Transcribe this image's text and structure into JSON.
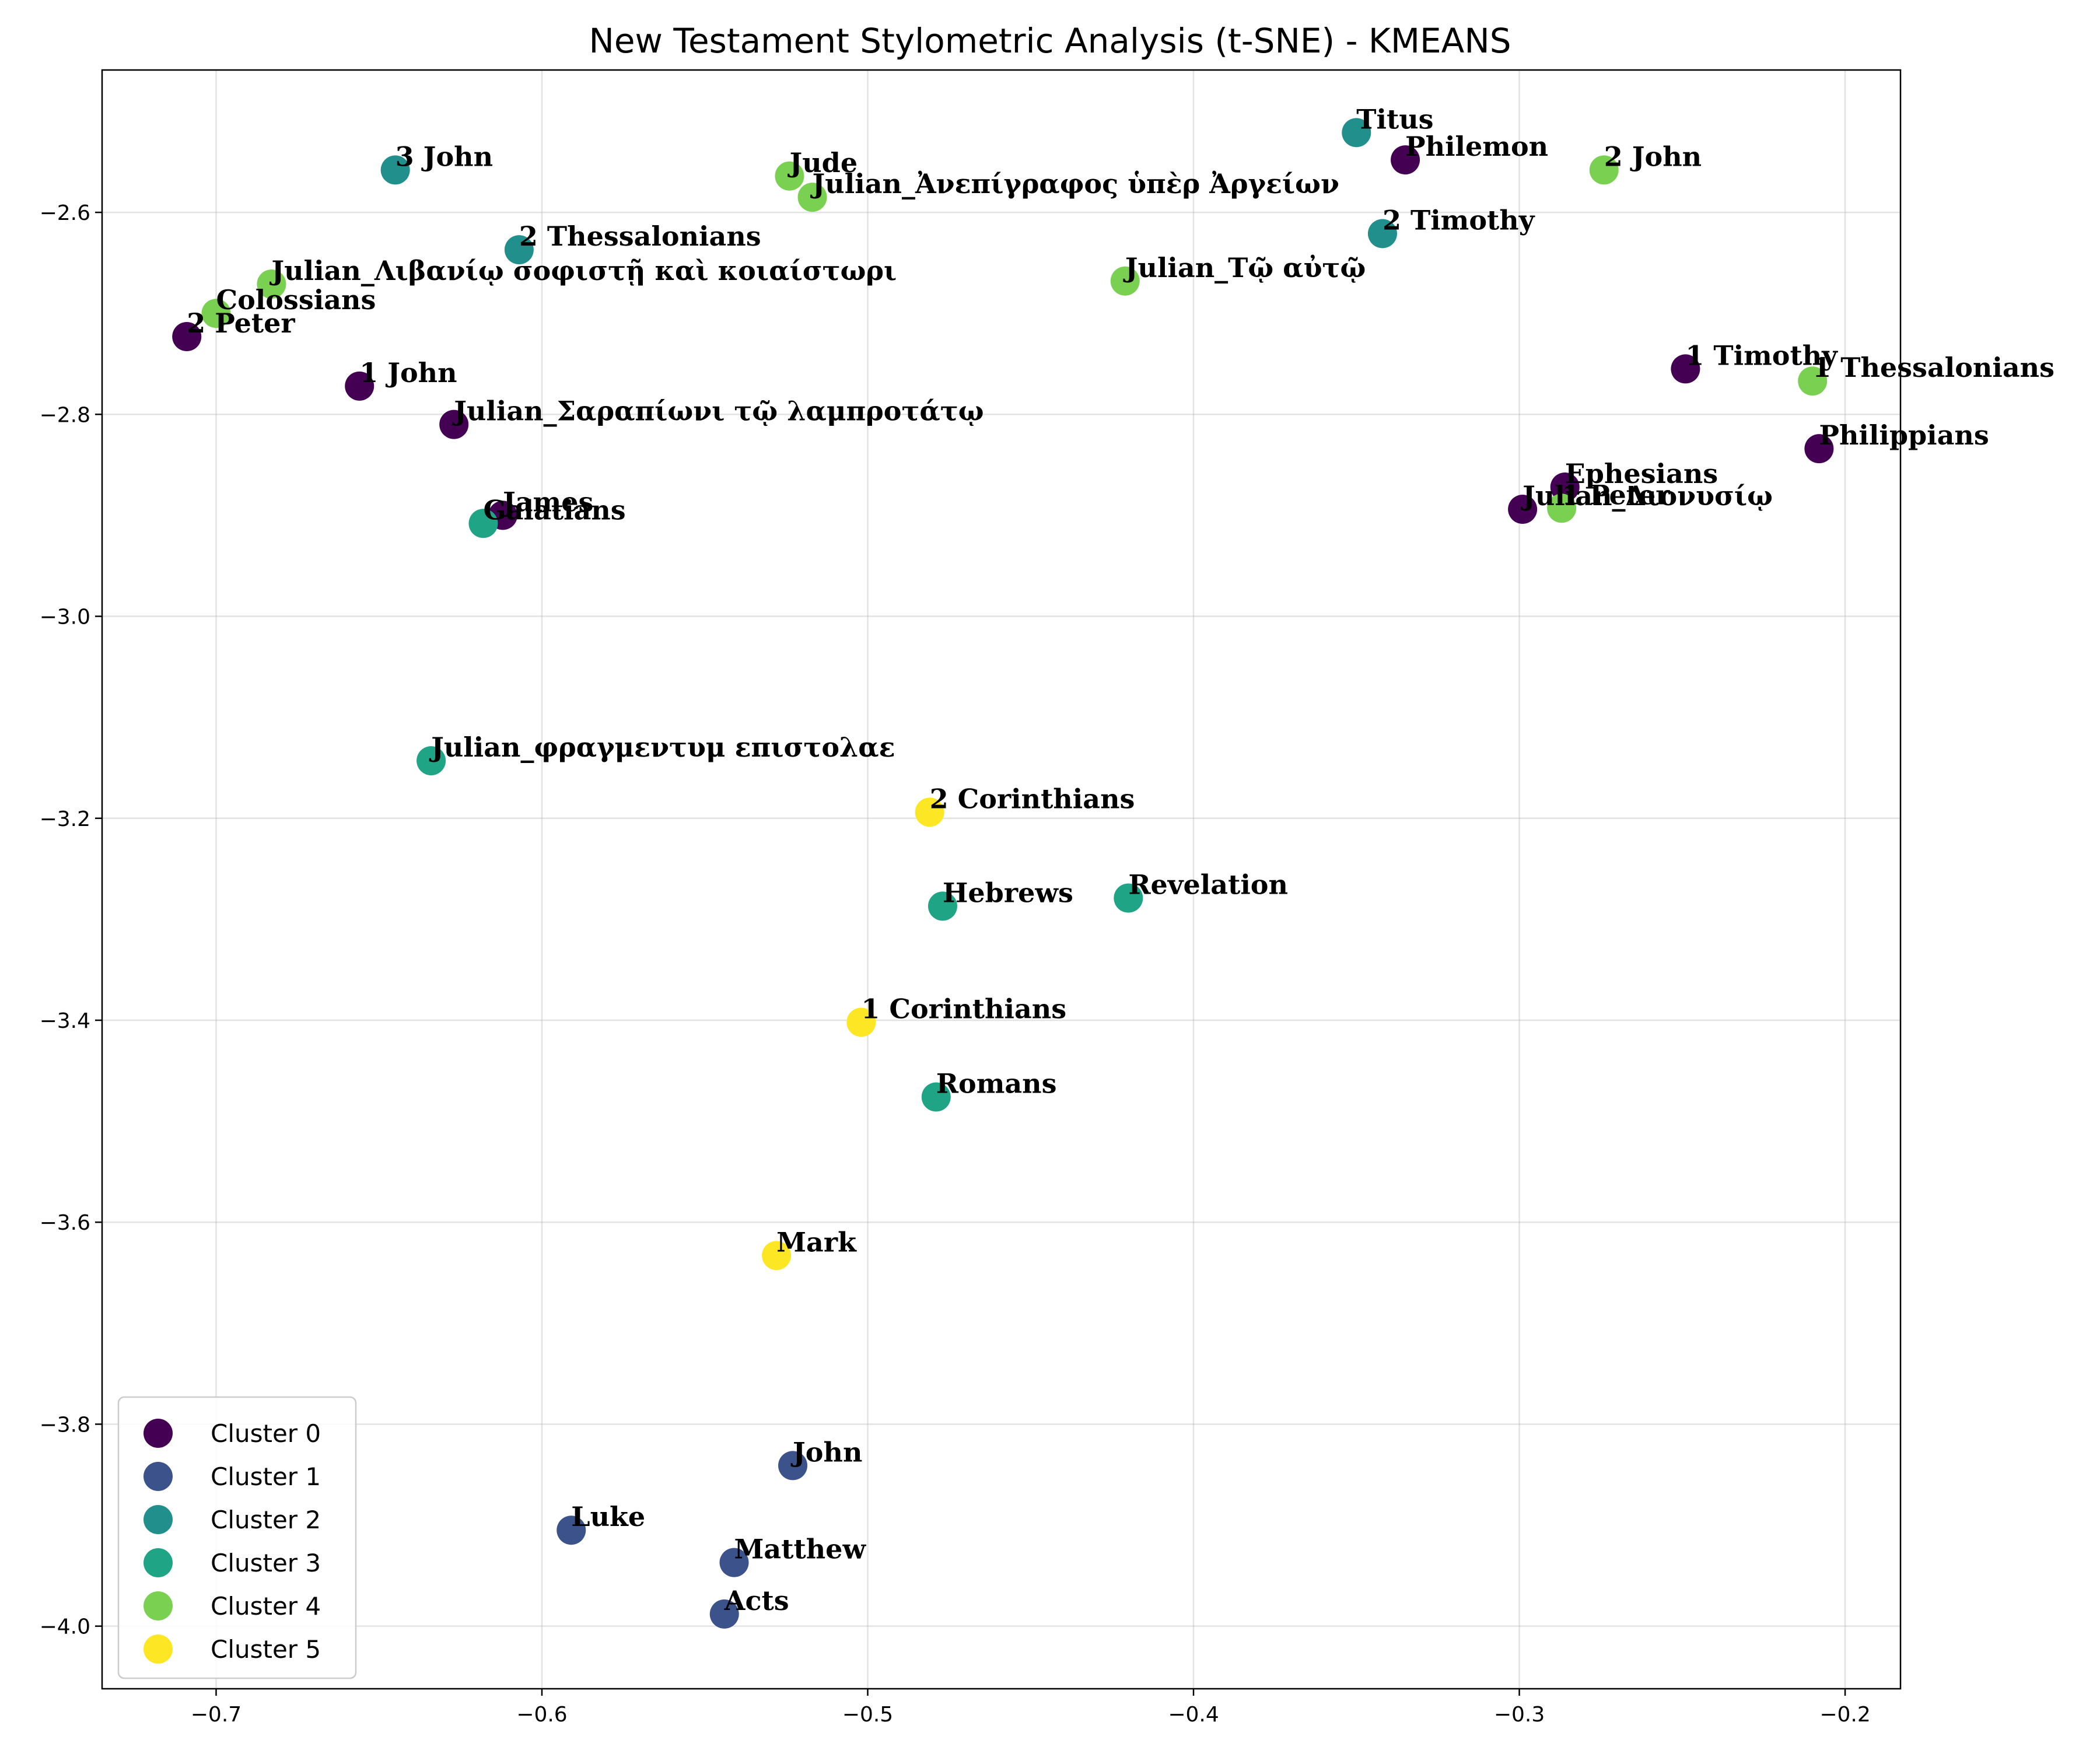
{
  "chart_data": {
    "type": "scatter",
    "title": "New Testament Stylometric Analysis (t-SNE) - KMEANS",
    "xlabel": "",
    "ylabel": "",
    "xlim": [
      -0.735,
      -0.183
    ],
    "ylim": [
      -4.062,
      -2.459
    ],
    "xticks": [
      -0.7,
      -0.6,
      -0.5,
      -0.4,
      -0.3,
      -0.2
    ],
    "xtick_labels": [
      "−0.7",
      "−0.6",
      "−0.5",
      "−0.4",
      "−0.3",
      "−0.2"
    ],
    "yticks": [
      -4.0,
      -3.8,
      -3.6,
      -3.4,
      -3.2,
      -3.0,
      -2.8,
      -2.6
    ],
    "ytick_labels": [
      "−4.0",
      "−3.8",
      "−3.6",
      "−3.4",
      "−3.2",
      "−3.0",
      "−2.8",
      "−2.6"
    ],
    "grid": true,
    "legend_position": "bottom-left",
    "series": [
      {
        "name": "Cluster 0",
        "color": "#440154",
        "points": [
          {
            "label": "Philemon",
            "x": -0.335,
            "y": -2.548
          },
          {
            "label": "2 Peter",
            "x": -0.709,
            "y": -2.723
          },
          {
            "label": "1 John",
            "x": -0.656,
            "y": -2.772
          },
          {
            "label": "Julian_Σαραπίωνι τῷ λαμπροτάτῳ",
            "x": -0.627,
            "y": -2.81
          },
          {
            "label": "James",
            "x": -0.612,
            "y": -2.9
          },
          {
            "label": "1 Timothy",
            "x": -0.249,
            "y": -2.755
          },
          {
            "label": "Philippians",
            "x": -0.208,
            "y": -2.834
          },
          {
            "label": "Ephesians",
            "x": -0.286,
            "y": -2.872
          },
          {
            "label": "Julian_Διονυσίῳ",
            "x": -0.299,
            "y": -2.894
          }
        ]
      },
      {
        "name": "Cluster 1",
        "color": "#3b528b",
        "points": [
          {
            "label": "John",
            "x": -0.523,
            "y": -3.841
          },
          {
            "label": "Luke",
            "x": -0.591,
            "y": -3.905
          },
          {
            "label": "Matthew",
            "x": -0.541,
            "y": -3.937
          },
          {
            "label": "Acts",
            "x": -0.544,
            "y": -3.988
          }
        ]
      },
      {
        "name": "Cluster 2",
        "color": "#21908d",
        "points": [
          {
            "label": "Titus",
            "x": -0.35,
            "y": -2.521
          },
          {
            "label": "3 John",
            "x": -0.645,
            "y": -2.558
          },
          {
            "label": "2 Thessalonians",
            "x": -0.607,
            "y": -2.637
          },
          {
            "label": "2 Timothy",
            "x": -0.342,
            "y": -2.621
          }
        ]
      },
      {
        "name": "Cluster 3",
        "color": "#20a486",
        "points": [
          {
            "label": "Galatians",
            "x": -0.618,
            "y": -2.908
          },
          {
            "label": "Julian_φραγμεντυμ επιστολαε",
            "x": -0.634,
            "y": -3.143
          },
          {
            "label": "Hebrews",
            "x": -0.477,
            "y": -3.287
          },
          {
            "label": "Revelation",
            "x": -0.42,
            "y": -3.279
          },
          {
            "label": "Romans",
            "x": -0.479,
            "y": -3.476
          }
        ]
      },
      {
        "name": "Cluster 4",
        "color": "#7ad151",
        "points": [
          {
            "label": "Jude",
            "x": -0.524,
            "y": -2.564
          },
          {
            "label": "Julian_Ἀνεπίγραφος ὑπὲρ Ἀργείων",
            "x": -0.517,
            "y": -2.585
          },
          {
            "label": "2 John",
            "x": -0.274,
            "y": -2.558
          },
          {
            "label": "Julian_Λιβανίῳ σοφιστῇ καὶ κοιαίστωρι",
            "x": -0.683,
            "y": -2.671
          },
          {
            "label": "Colossians",
            "x": -0.7,
            "y": -2.7
          },
          {
            "label": "Julian_Τῷ αὐτῷ",
            "x": -0.421,
            "y": -2.668
          },
          {
            "label": "1 Thessalonians",
            "x": -0.21,
            "y": -2.767
          },
          {
            "label": "1 Peter",
            "x": -0.287,
            "y": -2.893
          }
        ]
      },
      {
        "name": "Cluster 5",
        "color": "#fde725",
        "points": [
          {
            "label": "2 Corinthians",
            "x": -0.481,
            "y": -3.194
          },
          {
            "label": "1 Corinthians",
            "x": -0.502,
            "y": -3.402
          },
          {
            "label": "Mark",
            "x": -0.528,
            "y": -3.633
          }
        ]
      }
    ]
  }
}
